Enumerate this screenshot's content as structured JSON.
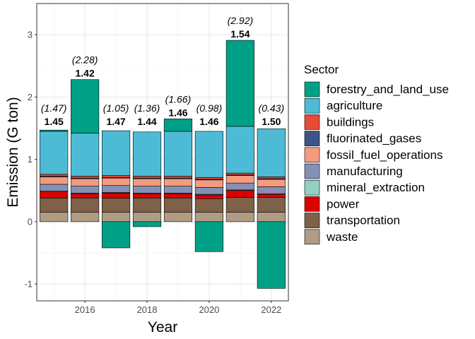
{
  "chart_data": {
    "type": "bar",
    "stacked": true,
    "xlabel": "Year",
    "ylabel": "Emission (G ton)",
    "xlim": [
      2014.45,
      2022.55
    ],
    "ylim": [
      -1.27,
      3.5
    ],
    "x_ticks": [
      2016,
      2018,
      2020,
      2022
    ],
    "x_tick_labels": [
      "2016",
      "2018",
      "2020",
      "2022"
    ],
    "y_ticks": [
      -1,
      0,
      1,
      2,
      3
    ],
    "y_tick_labels": [
      "-1",
      "0",
      "1",
      "2",
      "3"
    ],
    "grid": true,
    "legend_title": "Sector",
    "legend_position": "right",
    "years": [
      2015,
      2016,
      2017,
      2018,
      2019,
      2020,
      2021,
      2022
    ],
    "series": [
      {
        "name": "waste",
        "color": "#B09C85",
        "values": [
          0.15,
          0.15,
          0.15,
          0.15,
          0.15,
          0.15,
          0.15,
          0.15
        ]
      },
      {
        "name": "transportation",
        "color": "#7E6148",
        "values": [
          0.23,
          0.23,
          0.23,
          0.23,
          0.23,
          0.22,
          0.24,
          0.24
        ]
      },
      {
        "name": "power",
        "color": "#DC0000",
        "values": [
          0.1,
          0.07,
          0.08,
          0.07,
          0.07,
          0.06,
          0.11,
          0.05
        ]
      },
      {
        "name": "mineral_extraction",
        "color": "#91D1C2",
        "values": [
          0.01,
          0.01,
          0.01,
          0.01,
          0.01,
          0.01,
          0.01,
          0.01
        ]
      },
      {
        "name": "manufacturing",
        "color": "#8491B4",
        "values": [
          0.11,
          0.11,
          0.11,
          0.11,
          0.11,
          0.11,
          0.11,
          0.11
        ]
      },
      {
        "name": "fossil_fuel_operations",
        "color": "#F39B7F",
        "values": [
          0.12,
          0.12,
          0.12,
          0.12,
          0.12,
          0.12,
          0.12,
          0.12
        ]
      },
      {
        "name": "fluorinated_gases",
        "color": "#3C5488",
        "values": [
          0.01,
          0.01,
          0.01,
          0.01,
          0.01,
          0.01,
          0.01,
          0.01
        ]
      },
      {
        "name": "buildings",
        "color": "#E64B35",
        "values": [
          0.03,
          0.03,
          0.03,
          0.03,
          0.03,
          0.03,
          0.03,
          0.03
        ]
      },
      {
        "name": "agriculture",
        "color": "#4DBBD5",
        "values": [
          0.69,
          0.69,
          0.72,
          0.71,
          0.72,
          0.74,
          0.75,
          0.77
        ]
      },
      {
        "name": "forestry_and_land_use",
        "color": "#00A087",
        "values": [
          0.02,
          0.86,
          -0.42,
          -0.08,
          0.2,
          -0.48,
          1.38,
          -1.07
        ]
      }
    ],
    "legend_order": [
      "forestry_and_land_use",
      "agriculture",
      "buildings",
      "fluorinated_gases",
      "fossil_fuel_operations",
      "manufacturing",
      "mineral_extraction",
      "power",
      "transportation",
      "waste"
    ],
    "data_labels": [
      {
        "year": 2015,
        "main": "1.45",
        "sub": "(1.47)"
      },
      {
        "year": 2016,
        "main": "1.42",
        "sub": "(2.28)"
      },
      {
        "year": 2017,
        "main": "1.47",
        "sub": "(1.05)"
      },
      {
        "year": 2018,
        "main": "1.44",
        "sub": "(1.36)"
      },
      {
        "year": 2019,
        "main": "1.46",
        "sub": "(1.66)"
      },
      {
        "year": 2020,
        "main": "1.46",
        "sub": "(0.98)"
      },
      {
        "year": 2021,
        "main": "1.54",
        "sub": "(2.92)"
      },
      {
        "year": 2022,
        "main": "1.50",
        "sub": "(0.43)"
      }
    ]
  }
}
